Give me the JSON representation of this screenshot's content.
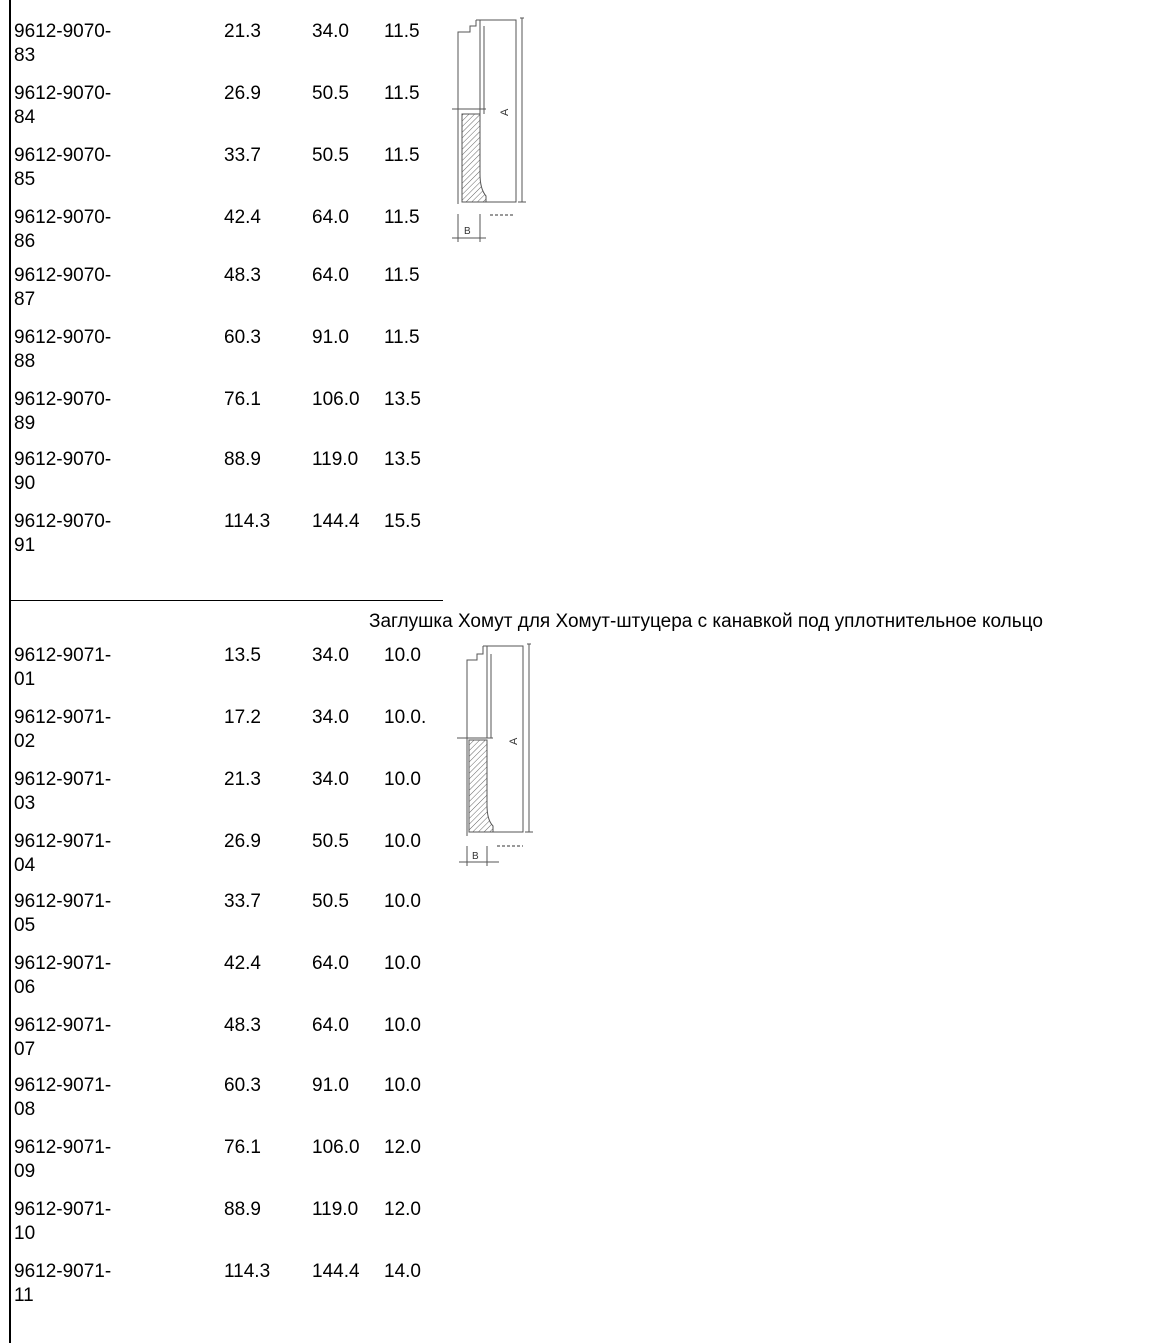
{
  "section1": {
    "rows": [
      {
        "code": "9612-9070-\n83",
        "code_a": "9612-9070-",
        "code_b": "83",
        "a": "21.3",
        "b": "34.0",
        "c": "11.5"
      },
      {
        "code_a": "9612-9070-",
        "code_b": "84",
        "a": "26.9",
        "b": "50.5",
        "c": "11.5"
      },
      {
        "code_a": "9612-9070-",
        "code_b": "85",
        "a": "33.7",
        "b": "50.5",
        "c": "11.5"
      },
      {
        "code_a": "9612-9070-",
        "code_b": "86",
        "a": "42.4",
        "b": "64.0",
        "c": "11.5"
      },
      {
        "code_a": "9612-9070-",
        "code_b": "87",
        "a": "48.3",
        "b": "64.0",
        "c": "11.5"
      },
      {
        "code_a": "9612-9070-",
        "code_b": "88",
        "a": "60.3",
        "b": "91.0",
        "c": "11.5"
      },
      {
        "code_a": "9612-9070-",
        "code_b": "89",
        "a": "76.1",
        "b": "106.0",
        "c": "13.5"
      },
      {
        "code_a": "9612-9070-",
        "code_b": "90",
        "a": "88.9",
        "b": "119.0",
        "c": "13.5"
      },
      {
        "code_a": "9612-9070-",
        "code_b": "91",
        "a": "114.3",
        "b": "144.4",
        "c": "15.5"
      }
    ],
    "drawing": {
      "label_a": "A",
      "label_b": "B"
    }
  },
  "section2": {
    "caption": "Заглушка Хомут для Хомут-штуцера с канавкой под уплотнительное кольцо",
    "rows": [
      {
        "code_a": "9612-9071-",
        "code_b": "01",
        "a": "13.5",
        "b": "34.0",
        "c": "10.0"
      },
      {
        "code_a": "9612-9071-",
        "code_b": "02",
        "a": "17.2",
        "b": "34.0",
        "c": "10.0."
      },
      {
        "code_a": "9612-9071-",
        "code_b": "03",
        "a": "21.3",
        "b": "34.0",
        "c": "10.0"
      },
      {
        "code_a": "9612-9071-",
        "code_b": "04",
        "a": "26.9",
        "b": "50.5",
        "c": "10.0"
      },
      {
        "code_a": "9612-9071-",
        "code_b": "05",
        "a": "33.7",
        "b": "50.5",
        "c": "10.0"
      },
      {
        "code_a": "9612-9071-",
        "code_b": "06",
        "a": "42.4",
        "b": "64.0",
        "c": "10.0"
      },
      {
        "code_a": "9612-9071-",
        "code_b": "07",
        "a": "48.3",
        "b": "64.0",
        "c": "10.0"
      },
      {
        "code_a": "9612-9071-",
        "code_b": "08",
        "a": "60.3",
        "b": "91.0",
        "c": "10.0"
      },
      {
        "code_a": "9612-9071-",
        "code_b": "09",
        "a": "76.1",
        "b": "106.0",
        "c": "12.0"
      },
      {
        "code_a": "9612-9071-",
        "code_b": "10",
        "a": "88.9",
        "b": "119.0",
        "c": "12.0"
      },
      {
        "code_a": "9612-9071-",
        "code_b": "11",
        "a": "114.3",
        "b": "144.4",
        "c": "14.0"
      }
    ],
    "drawing": {
      "label_a": "A",
      "label_b": "B"
    }
  }
}
